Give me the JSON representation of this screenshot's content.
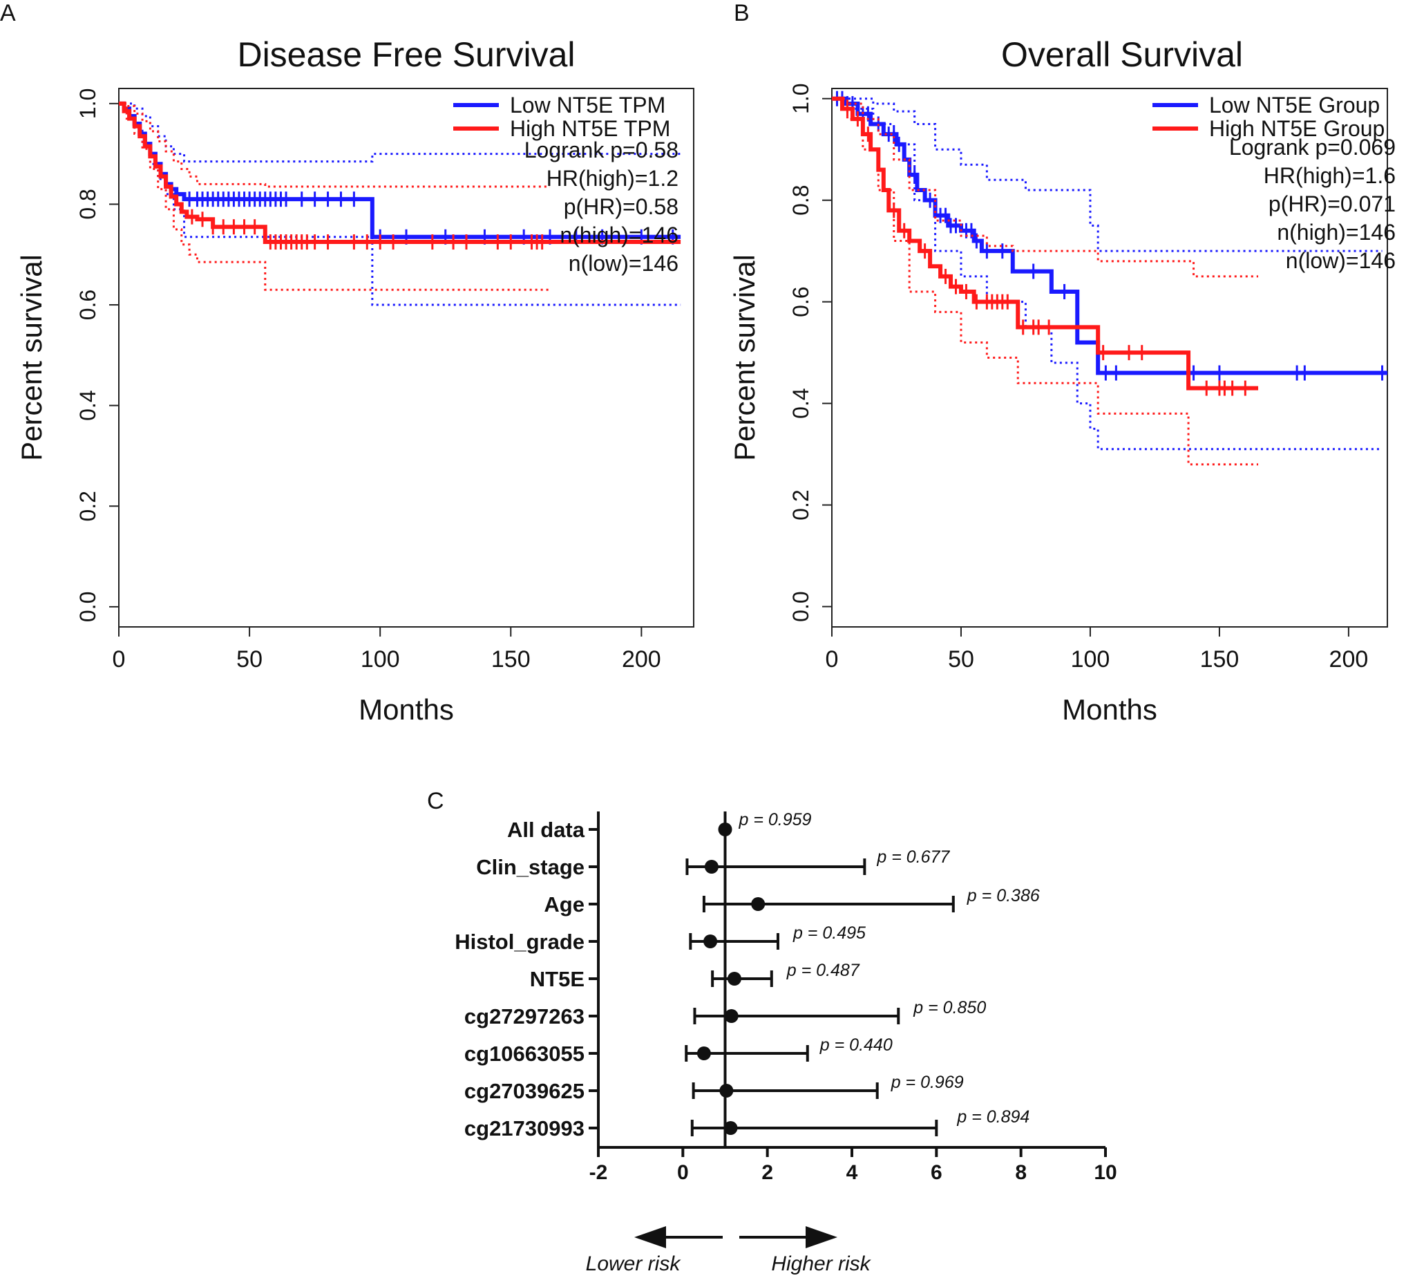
{
  "figure": {
    "panel_labels": [
      "A",
      "B",
      "C"
    ]
  },
  "colors": {
    "low": "#1a1aff",
    "high": "#ff1a1a",
    "ink": "#111111"
  },
  "chart_data": [
    {
      "id": "A",
      "type": "line",
      "subtype": "kaplan-meier",
      "title": "Disease Free Survival",
      "xlabel": "Months",
      "ylabel": "Percent survival",
      "xlim": [
        0,
        220
      ],
      "ylim": [
        -0.04,
        1.03
      ],
      "xticks": [
        "0",
        "50",
        "100",
        "150",
        "200"
      ],
      "xtick_values": [
        0,
        50,
        100,
        150,
        200
      ],
      "yticks": [
        "0.0",
        "0.2",
        "0.4",
        "0.6",
        "0.8",
        "1.0"
      ],
      "ytick_values": [
        0,
        0.2,
        0.4,
        0.6,
        0.8,
        1.0
      ],
      "legend": [
        "Low NT5E TPM",
        "High NT5E TPM"
      ],
      "stats": [
        "Logrank p=0.58",
        "HR(high)=1.2",
        "p(HR)=0.58",
        "n(high)=146",
        "n(low)=146"
      ],
      "series": [
        {
          "name": "Low NT5E TPM",
          "color": "low",
          "x": [
            0,
            2,
            4,
            6,
            8,
            10,
            12,
            14,
            16,
            18,
            20,
            22,
            25,
            28,
            97,
            97,
            215
          ],
          "y": [
            1.0,
            0.99,
            0.975,
            0.96,
            0.94,
            0.92,
            0.9,
            0.88,
            0.86,
            0.84,
            0.83,
            0.82,
            0.81,
            0.81,
            0.81,
            0.735,
            0.735
          ],
          "censor": [
            27,
            30,
            32,
            34,
            36,
            38,
            40,
            42,
            44,
            46,
            48,
            50,
            52,
            54,
            56,
            58,
            60,
            62,
            64,
            70,
            75,
            80,
            85,
            90,
            100,
            110,
            125,
            140,
            155,
            165,
            175,
            185,
            200,
            212
          ],
          "ci_upper": {
            "x": [
              0,
              3,
              6,
              9,
              12,
              15,
              18,
              21,
              25,
              97,
              97,
              215
            ],
            "y": [
              1.0,
              1.0,
              0.99,
              0.975,
              0.955,
              0.935,
              0.915,
              0.9,
              0.885,
              0.885,
              0.9,
              0.9
            ]
          },
          "ci_lower": {
            "x": [
              0,
              3,
              6,
              9,
              12,
              15,
              18,
              21,
              25,
              97,
              97,
              215
            ],
            "y": [
              1.0,
              0.975,
              0.95,
              0.92,
              0.88,
              0.85,
              0.82,
              0.79,
              0.735,
              0.735,
              0.6,
              0.6
            ]
          }
        },
        {
          "name": "High NT5E TPM",
          "color": "high",
          "x": [
            0,
            2,
            4,
            6,
            8,
            10,
            12,
            14,
            16,
            18,
            20,
            22,
            24,
            26,
            30,
            36,
            56,
            56,
            215
          ],
          "y": [
            1.0,
            0.985,
            0.97,
            0.955,
            0.935,
            0.915,
            0.895,
            0.875,
            0.855,
            0.835,
            0.815,
            0.8,
            0.785,
            0.775,
            0.77,
            0.755,
            0.755,
            0.725,
            0.725
          ],
          "censor": [
            28,
            32,
            36,
            40,
            44,
            48,
            52,
            58,
            60,
            62,
            64,
            66,
            68,
            70,
            72,
            75,
            80,
            90,
            95,
            100,
            105,
            120,
            128,
            133,
            145,
            150,
            158,
            160,
            162
          ],
          "ci_upper": {
            "x": [
              0,
              3,
              6,
              9,
              12,
              15,
              18,
              21,
              24,
              27,
              30,
              56,
              56,
              165
            ],
            "y": [
              1.0,
              0.995,
              0.98,
              0.965,
              0.945,
              0.925,
              0.905,
              0.885,
              0.87,
              0.855,
              0.84,
              0.84,
              0.835,
              0.835
            ]
          },
          "ci_lower": {
            "x": [
              0,
              3,
              6,
              9,
              12,
              15,
              18,
              21,
              24,
              27,
              30,
              56,
              56,
              165
            ],
            "y": [
              1.0,
              0.97,
              0.94,
              0.91,
              0.87,
              0.83,
              0.79,
              0.75,
              0.72,
              0.7,
              0.685,
              0.685,
              0.63,
              0.63
            ]
          }
        }
      ]
    },
    {
      "id": "B",
      "type": "line",
      "subtype": "kaplan-meier",
      "title": "Overall Survival",
      "xlabel": "Months",
      "ylabel": "Percent survival",
      "xlim": [
        0,
        215
      ],
      "ylim": [
        -0.04,
        1.02
      ],
      "xticks": [
        "0",
        "50",
        "100",
        "150",
        "200"
      ],
      "xtick_values": [
        0,
        50,
        100,
        150,
        200
      ],
      "yticks": [
        "0.0",
        "0.2",
        "0.4",
        "0.6",
        "0.8",
        "1.0"
      ],
      "ytick_values": [
        0,
        0.2,
        0.4,
        0.6,
        0.8,
        1.0
      ],
      "legend": [
        "Low NT5E Group",
        "High NT5E Group"
      ],
      "stats": [
        "Logrank p=0.069",
        "HR(high)=1.6",
        "p(HR)=0.071",
        "n(high)=146",
        "n(low)=146"
      ],
      "series": [
        {
          "name": "Low NT5E Group",
          "color": "low",
          "x": [
            0,
            5,
            10,
            15,
            20,
            25,
            28,
            30,
            33,
            36,
            40,
            45,
            50,
            55,
            58,
            70,
            85,
            95,
            103,
            215
          ],
          "y": [
            1.0,
            0.99,
            0.97,
            0.95,
            0.93,
            0.91,
            0.88,
            0.85,
            0.82,
            0.8,
            0.77,
            0.75,
            0.74,
            0.72,
            0.7,
            0.66,
            0.62,
            0.52,
            0.46,
            0.46
          ],
          "censor": [
            2,
            4,
            6,
            8,
            12,
            14,
            18,
            22,
            24,
            26,
            32,
            38,
            42,
            44,
            46,
            48,
            52,
            54,
            56,
            60,
            66,
            78,
            90,
            106,
            110,
            140,
            150,
            180,
            183,
            213
          ],
          "ci_upper": {
            "x": [
              0,
              8,
              16,
              24,
              32,
              40,
              50,
              60,
              75,
              100,
              103,
              213
            ],
            "y": [
              1.0,
              1.0,
              0.99,
              0.975,
              0.95,
              0.9,
              0.87,
              0.84,
              0.82,
              0.75,
              0.7,
              0.7
            ]
          },
          "ci_lower": {
            "x": [
              0,
              8,
              16,
              24,
              32,
              40,
              50,
              60,
              75,
              85,
              95,
              100,
              103,
              213
            ],
            "y": [
              1.0,
              0.98,
              0.95,
              0.91,
              0.8,
              0.7,
              0.65,
              0.6,
              0.55,
              0.48,
              0.4,
              0.35,
              0.31,
              0.31
            ]
          }
        },
        {
          "name": "High NT5E Group",
          "color": "high",
          "x": [
            0,
            4,
            8,
            12,
            15,
            18,
            20,
            22,
            26,
            30,
            34,
            38,
            42,
            46,
            50,
            55,
            70,
            72,
            103,
            138,
            138,
            165
          ],
          "y": [
            1.0,
            0.98,
            0.96,
            0.93,
            0.9,
            0.86,
            0.82,
            0.78,
            0.74,
            0.72,
            0.7,
            0.67,
            0.65,
            0.63,
            0.62,
            0.6,
            0.6,
            0.55,
            0.5,
            0.5,
            0.43,
            0.43
          ],
          "censor": [
            6,
            10,
            14,
            24,
            28,
            36,
            44,
            48,
            52,
            56,
            60,
            62,
            64,
            66,
            68,
            74,
            78,
            80,
            84,
            105,
            115,
            120,
            145,
            150,
            152,
            155,
            160
          ],
          "ci_upper": {
            "x": [
              0,
              6,
              12,
              18,
              24,
              30,
              40,
              50,
              60,
              70,
              103,
              140,
              165
            ],
            "y": [
              1.0,
              0.99,
              0.96,
              0.93,
              0.88,
              0.82,
              0.76,
              0.73,
              0.71,
              0.7,
              0.68,
              0.65,
              0.65
            ]
          },
          "ci_lower": {
            "x": [
              0,
              6,
              12,
              18,
              24,
              30,
              40,
              50,
              60,
              70,
              72,
              103,
              137,
              138,
              165
            ],
            "y": [
              1.0,
              0.96,
              0.9,
              0.82,
              0.72,
              0.62,
              0.58,
              0.52,
              0.49,
              0.49,
              0.44,
              0.38,
              0.38,
              0.28,
              0.28
            ]
          }
        }
      ]
    },
    {
      "id": "C",
      "type": "forest",
      "xlim": [
        -2,
        10
      ],
      "xticks": [
        "-2",
        "0",
        "2",
        "4",
        "6",
        "8",
        "10"
      ],
      "xtick_values": [
        -2,
        0,
        2,
        4,
        6,
        8,
        10
      ],
      "reference_line": 1,
      "arrow_left": "Lower risk",
      "arrow_right": "Higher risk",
      "rows": [
        {
          "label": "All data",
          "estimate": 1.0,
          "lower": 1.0,
          "upper": 1.0,
          "p": "p = 0.959"
        },
        {
          "label": "Clin_stage",
          "estimate": 0.68,
          "lower": 0.1,
          "upper": 4.3,
          "p": "p = 0.677"
        },
        {
          "label": "Age",
          "estimate": 1.78,
          "lower": 0.5,
          "upper": 6.4,
          "p": "p = 0.386"
        },
        {
          "label": "Histol_grade",
          "estimate": 0.65,
          "lower": 0.18,
          "upper": 2.25,
          "p": "p = 0.495"
        },
        {
          "label": "NT5E",
          "estimate": 1.22,
          "lower": 0.7,
          "upper": 2.1,
          "p": "p = 0.487"
        },
        {
          "label": "cg27297263",
          "estimate": 1.15,
          "lower": 0.28,
          "upper": 5.1,
          "p": "p = 0.850"
        },
        {
          "label": "cg10663055",
          "estimate": 0.5,
          "lower": 0.08,
          "upper": 2.95,
          "p": "p = 0.440"
        },
        {
          "label": "cg27039625",
          "estimate": 1.03,
          "lower": 0.25,
          "upper": 4.6,
          "p": "p = 0.969"
        },
        {
          "label": "cg21730993",
          "estimate": 1.13,
          "lower": 0.22,
          "upper": 6.0,
          "p": "p = 0.894"
        }
      ]
    }
  ]
}
